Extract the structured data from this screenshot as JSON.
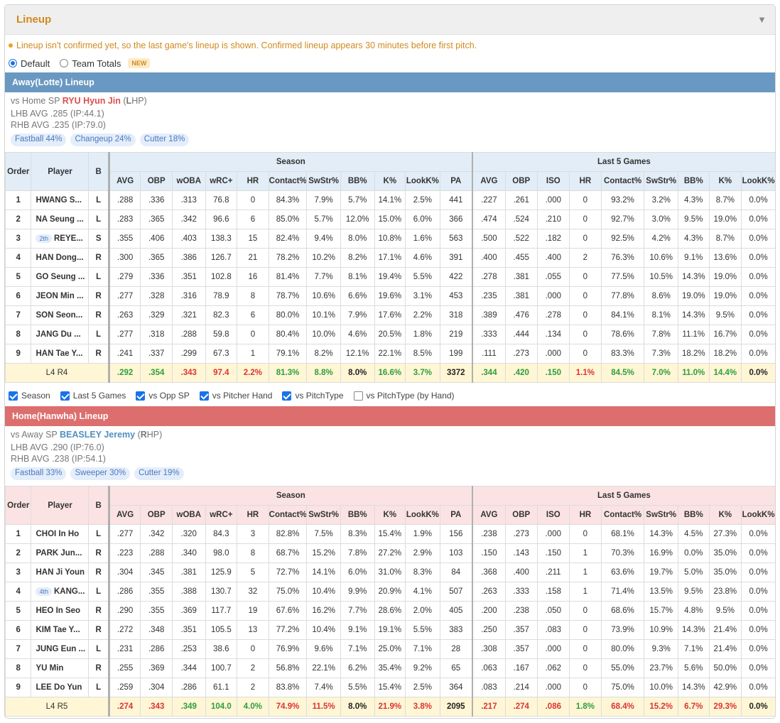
{
  "title": "Lineup",
  "notice": "Lineup isn't confirmed yet, so the last game's lineup is shown. Confirmed lineup appears 30 minutes before first pitch.",
  "radio": {
    "default": "Default",
    "team_totals": "Team Totals",
    "new_badge": "NEW",
    "selected": "Default"
  },
  "headers": {
    "order": "Order",
    "player": "Player",
    "b": "B",
    "season": "Season",
    "last5": "Last 5 Games",
    "season_cols": [
      "AVG",
      "OBP",
      "wOBA",
      "wRC+",
      "HR",
      "Contact%",
      "SwStr%",
      "BB%",
      "K%",
      "LookK%",
      "PA"
    ],
    "last5_cols": [
      "AVG",
      "OBP",
      "ISO",
      "HR",
      "Contact%",
      "SwStr%",
      "BB%",
      "K%",
      "LookK%"
    ]
  },
  "checks": [
    {
      "label": "Season",
      "checked": true
    },
    {
      "label": "Last 5 Games",
      "checked": true
    },
    {
      "label": "vs Opp SP",
      "checked": true
    },
    {
      "label": "vs Pitcher Hand",
      "checked": true
    },
    {
      "label": "vs PitchType",
      "checked": true
    },
    {
      "label": "vs PitchType (by Hand)",
      "checked": false
    }
  ],
  "colors": {
    "away_header": "#6998c2",
    "home_header": "#dd6e6e",
    "good": "#2e9e3e",
    "bad": "#d33",
    "accent": "#d08a1e"
  },
  "away": {
    "header": "Away(Lotte) Lineup",
    "sp_prefix": "vs Home SP ",
    "sp_name": "RYU Hyun Jin",
    "sp_hand_open": " (",
    "sp_hand_bold": "L",
    "sp_hand_rest": "HP)",
    "lhb": "LHB AVG .285 (IP:44.1)",
    "rhb": "RHB AVG .235 (IP:79.0)",
    "pitches": [
      "Fastball 44%",
      "Changeup 24%",
      "Cutter 18%"
    ],
    "rows": [
      {
        "order": "1",
        "badge": "",
        "player": "HWANG S...",
        "b": "L",
        "season": [
          ".288",
          ".336",
          ".313",
          "76.8",
          "0",
          "84.3%",
          "7.9%",
          "5.7%",
          "14.1%",
          "2.5%",
          "441"
        ],
        "last5": [
          ".227",
          ".261",
          ".000",
          "0",
          "93.2%",
          "3.2%",
          "4.3%",
          "8.7%",
          "0.0%"
        ]
      },
      {
        "order": "2",
        "badge": "",
        "player": "NA Seung ...",
        "b": "L",
        "season": [
          ".283",
          ".365",
          ".342",
          "96.6",
          "6",
          "85.0%",
          "5.7%",
          "12.0%",
          "15.0%",
          "6.0%",
          "366"
        ],
        "last5": [
          ".474",
          ".524",
          ".210",
          "0",
          "92.7%",
          "3.0%",
          "9.5%",
          "19.0%",
          "0.0%"
        ]
      },
      {
        "order": "3",
        "badge": "2th",
        "player": "REYE...",
        "b": "S",
        "season": [
          ".355",
          ".406",
          ".403",
          "138.3",
          "15",
          "82.4%",
          "9.4%",
          "8.0%",
          "10.8%",
          "1.6%",
          "563"
        ],
        "last5": [
          ".500",
          ".522",
          ".182",
          "0",
          "92.5%",
          "4.2%",
          "4.3%",
          "8.7%",
          "0.0%"
        ]
      },
      {
        "order": "4",
        "badge": "",
        "player": "HAN Dong...",
        "b": "R",
        "season": [
          ".300",
          ".365",
          ".386",
          "126.7",
          "21",
          "78.2%",
          "10.2%",
          "8.2%",
          "17.1%",
          "4.6%",
          "391"
        ],
        "last5": [
          ".400",
          ".455",
          ".400",
          "2",
          "76.3%",
          "10.6%",
          "9.1%",
          "13.6%",
          "0.0%"
        ]
      },
      {
        "order": "5",
        "badge": "",
        "player": "GO Seung ...",
        "b": "L",
        "season": [
          ".279",
          ".336",
          ".351",
          "102.8",
          "16",
          "81.4%",
          "7.7%",
          "8.1%",
          "19.4%",
          "5.5%",
          "422"
        ],
        "last5": [
          ".278",
          ".381",
          ".055",
          "0",
          "77.5%",
          "10.5%",
          "14.3%",
          "19.0%",
          "0.0%"
        ]
      },
      {
        "order": "6",
        "badge": "",
        "player": "JEON Min ...",
        "b": "R",
        "season": [
          ".277",
          ".328",
          ".316",
          "78.9",
          "8",
          "78.7%",
          "10.6%",
          "6.6%",
          "19.6%",
          "3.1%",
          "453"
        ],
        "last5": [
          ".235",
          ".381",
          ".000",
          "0",
          "77.8%",
          "8.6%",
          "19.0%",
          "19.0%",
          "0.0%"
        ]
      },
      {
        "order": "7",
        "badge": "",
        "player": "SON Seon...",
        "b": "R",
        "season": [
          ".263",
          ".329",
          ".321",
          "82.3",
          "6",
          "80.0%",
          "10.1%",
          "7.9%",
          "17.6%",
          "2.2%",
          "318"
        ],
        "last5": [
          ".389",
          ".476",
          ".278",
          "0",
          "84.1%",
          "8.1%",
          "14.3%",
          "9.5%",
          "0.0%"
        ]
      },
      {
        "order": "8",
        "badge": "",
        "player": "JANG Du ...",
        "b": "L",
        "season": [
          ".277",
          ".318",
          ".288",
          "59.8",
          "0",
          "80.4%",
          "10.0%",
          "4.6%",
          "20.5%",
          "1.8%",
          "219"
        ],
        "last5": [
          ".333",
          ".444",
          ".134",
          "0",
          "78.6%",
          "7.8%",
          "11.1%",
          "16.7%",
          "0.0%"
        ]
      },
      {
        "order": "9",
        "badge": "",
        "player": "HAN Tae Y...",
        "b": "R",
        "season": [
          ".241",
          ".337",
          ".299",
          "67.3",
          "1",
          "79.1%",
          "8.2%",
          "12.1%",
          "22.1%",
          "8.5%",
          "199"
        ],
        "last5": [
          ".111",
          ".273",
          ".000",
          "0",
          "83.3%",
          "7.3%",
          "18.2%",
          "18.2%",
          "0.0%"
        ]
      }
    ],
    "total": {
      "label": "L4 R4",
      "season": [
        ".292",
        ".354",
        ".343",
        "97.4",
        "2.2%",
        "81.3%",
        "8.8%",
        "8.0%",
        "16.6%",
        "3.7%",
        "3372"
      ],
      "season_colors": [
        "g",
        "g",
        "r",
        "r",
        "r",
        "g",
        "g",
        "k",
        "g",
        "g",
        "k"
      ],
      "last5": [
        ".344",
        ".420",
        ".150",
        "1.1%",
        "84.5%",
        "7.0%",
        "11.0%",
        "14.4%",
        "0.0%"
      ],
      "last5_colors": [
        "g",
        "g",
        "g",
        "r",
        "g",
        "g",
        "g",
        "g",
        "k"
      ]
    }
  },
  "home": {
    "header": "Home(Hanwha) Lineup",
    "sp_prefix": "vs Away SP ",
    "sp_name": "BEASLEY Jeremy",
    "sp_hand_open": " (",
    "sp_hand_bold": "R",
    "sp_hand_rest": "HP)",
    "lhb": "LHB AVG .290 (IP:76.0)",
    "rhb": "RHB AVG .238 (IP:54.1)",
    "pitches": [
      "Fastball 33%",
      "Sweeper 30%",
      "Cutter 19%"
    ],
    "rows": [
      {
        "order": "1",
        "badge": "",
        "player": "CHOI In Ho",
        "b": "L",
        "season": [
          ".277",
          ".342",
          ".320",
          "84.3",
          "3",
          "82.8%",
          "7.5%",
          "8.3%",
          "15.4%",
          "1.9%",
          "156"
        ],
        "last5": [
          ".238",
          ".273",
          ".000",
          "0",
          "68.1%",
          "14.3%",
          "4.5%",
          "27.3%",
          "0.0%"
        ]
      },
      {
        "order": "2",
        "badge": "",
        "player": "PARK Jun...",
        "b": "R",
        "season": [
          ".223",
          ".288",
          ".340",
          "98.0",
          "8",
          "68.7%",
          "15.2%",
          "7.8%",
          "27.2%",
          "2.9%",
          "103"
        ],
        "last5": [
          ".150",
          ".143",
          ".150",
          "1",
          "70.3%",
          "16.9%",
          "0.0%",
          "35.0%",
          "0.0%"
        ]
      },
      {
        "order": "3",
        "badge": "",
        "player": "HAN Ji Youn",
        "b": "R",
        "season": [
          ".304",
          ".345",
          ".381",
          "125.9",
          "5",
          "72.7%",
          "14.1%",
          "6.0%",
          "31.0%",
          "8.3%",
          "84"
        ],
        "last5": [
          ".368",
          ".400",
          ".211",
          "1",
          "63.6%",
          "19.7%",
          "5.0%",
          "35.0%",
          "0.0%"
        ]
      },
      {
        "order": "4",
        "badge": "4th",
        "player": "KANG...",
        "b": "L",
        "season": [
          ".286",
          ".355",
          ".388",
          "130.7",
          "32",
          "75.0%",
          "10.4%",
          "9.9%",
          "20.9%",
          "4.1%",
          "507"
        ],
        "last5": [
          ".263",
          ".333",
          ".158",
          "1",
          "71.4%",
          "13.5%",
          "9.5%",
          "23.8%",
          "0.0%"
        ]
      },
      {
        "order": "5",
        "badge": "",
        "player": "HEO In Seo",
        "b": "R",
        "season": [
          ".290",
          ".355",
          ".369",
          "117.7",
          "19",
          "67.6%",
          "16.2%",
          "7.7%",
          "28.6%",
          "2.0%",
          "405"
        ],
        "last5": [
          ".200",
          ".238",
          ".050",
          "0",
          "68.6%",
          "15.7%",
          "4.8%",
          "9.5%",
          "0.0%"
        ]
      },
      {
        "order": "6",
        "badge": "",
        "player": "KIM Tae Y...",
        "b": "R",
        "season": [
          ".272",
          ".348",
          ".351",
          "105.5",
          "13",
          "77.2%",
          "10.4%",
          "9.1%",
          "19.1%",
          "5.5%",
          "383"
        ],
        "last5": [
          ".250",
          ".357",
          ".083",
          "0",
          "73.9%",
          "10.9%",
          "14.3%",
          "21.4%",
          "0.0%"
        ]
      },
      {
        "order": "7",
        "badge": "",
        "player": "JUNG Eun ...",
        "b": "L",
        "season": [
          ".231",
          ".286",
          ".253",
          "38.6",
          "0",
          "76.9%",
          "9.6%",
          "7.1%",
          "25.0%",
          "7.1%",
          "28"
        ],
        "last5": [
          ".308",
          ".357",
          ".000",
          "0",
          "80.0%",
          "9.3%",
          "7.1%",
          "21.4%",
          "0.0%"
        ]
      },
      {
        "order": "8",
        "badge": "",
        "player": "YU Min",
        "b": "R",
        "season": [
          ".255",
          ".369",
          ".344",
          "100.7",
          "2",
          "56.8%",
          "22.1%",
          "6.2%",
          "35.4%",
          "9.2%",
          "65"
        ],
        "last5": [
          ".063",
          ".167",
          ".062",
          "0",
          "55.0%",
          "23.7%",
          "5.6%",
          "50.0%",
          "0.0%"
        ]
      },
      {
        "order": "9",
        "badge": "",
        "player": "LEE Do Yun",
        "b": "L",
        "season": [
          ".259",
          ".304",
          ".286",
          "61.1",
          "2",
          "83.8%",
          "7.4%",
          "5.5%",
          "15.4%",
          "2.5%",
          "364"
        ],
        "last5": [
          ".083",
          ".214",
          ".000",
          "0",
          "75.0%",
          "10.0%",
          "14.3%",
          "42.9%",
          "0.0%"
        ]
      }
    ],
    "total": {
      "label": "L4 R5",
      "season": [
        ".274",
        ".343",
        ".349",
        "104.0",
        "4.0%",
        "74.9%",
        "11.5%",
        "8.0%",
        "21.9%",
        "3.8%",
        "2095"
      ],
      "season_colors": [
        "r",
        "r",
        "g",
        "g",
        "g",
        "r",
        "r",
        "k",
        "r",
        "r",
        "k"
      ],
      "last5": [
        ".217",
        ".274",
        ".086",
        "1.8%",
        "68.4%",
        "15.2%",
        "6.7%",
        "29.3%",
        "0.0%"
      ],
      "last5_colors": [
        "r",
        "r",
        "r",
        "g",
        "r",
        "r",
        "r",
        "r",
        "k"
      ]
    }
  }
}
